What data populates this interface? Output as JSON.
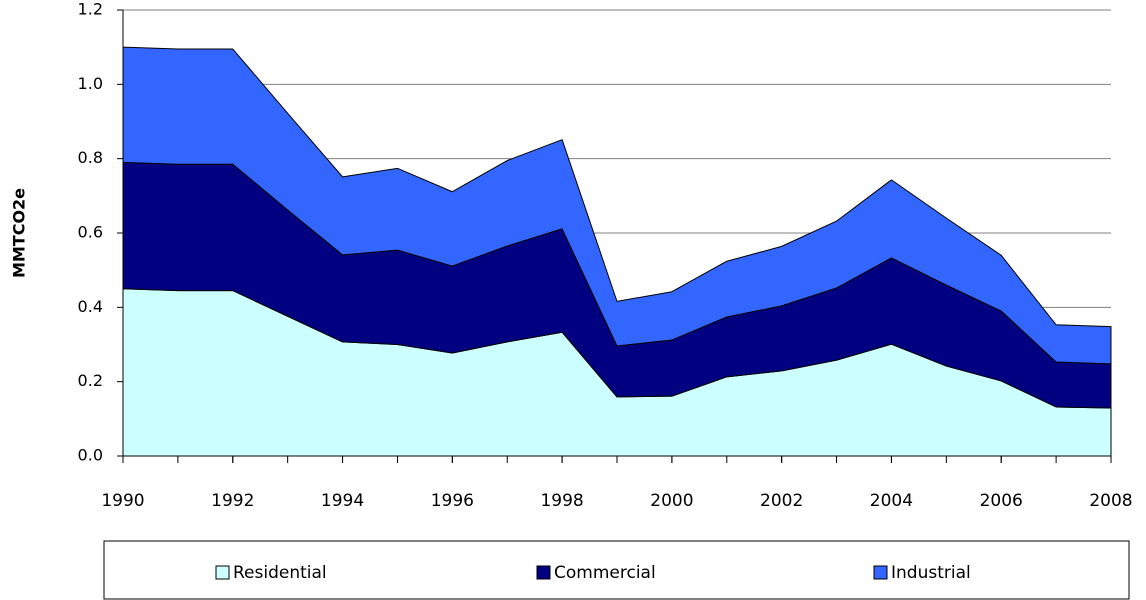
{
  "chart_data": {
    "type": "stacked-area",
    "y_label": "MMTCO2e",
    "x": [
      1990,
      1991,
      1992,
      1993,
      1994,
      1995,
      1996,
      1997,
      1998,
      1999,
      2000,
      2001,
      2002,
      2003,
      2004,
      2005,
      2006,
      2007,
      2008
    ],
    "xlim": [
      1990,
      2008
    ],
    "xticks": [
      1990,
      1992,
      1994,
      1996,
      1998,
      2000,
      2002,
      2004,
      2006,
      2008
    ],
    "ylim": [
      0,
      1.2
    ],
    "yticks": [
      {
        "value": 0,
        "label": "0.0"
      },
      0.2,
      0.4,
      0.6,
      0.8,
      {
        "value": 1,
        "label": "1.0"
      },
      1.2
    ],
    "grid": true,
    "legend": "bottom",
    "series": [
      {
        "name": "Residential",
        "color": "#ccffff",
        "values": [
          0.45,
          0.445,
          0.445,
          0.376,
          0.307,
          0.3,
          0.277,
          0.307,
          0.333,
          0.159,
          0.161,
          0.213,
          0.229,
          0.258,
          0.301,
          0.242,
          0.202,
          0.132,
          0.129
        ]
      },
      {
        "name": "Commercial",
        "color": "#000080",
        "values": [
          0.34,
          0.34,
          0.34,
          0.286,
          0.234,
          0.254,
          0.234,
          0.258,
          0.278,
          0.137,
          0.151,
          0.161,
          0.175,
          0.194,
          0.232,
          0.218,
          0.188,
          0.121,
          0.119
        ]
      },
      {
        "name": "Industrial",
        "color": "#3366ff",
        "values": [
          0.31,
          0.31,
          0.31,
          0.26,
          0.21,
          0.22,
          0.2,
          0.23,
          0.24,
          0.12,
          0.13,
          0.15,
          0.16,
          0.18,
          0.21,
          0.18,
          0.15,
          0.1,
          0.1
        ]
      }
    ]
  }
}
